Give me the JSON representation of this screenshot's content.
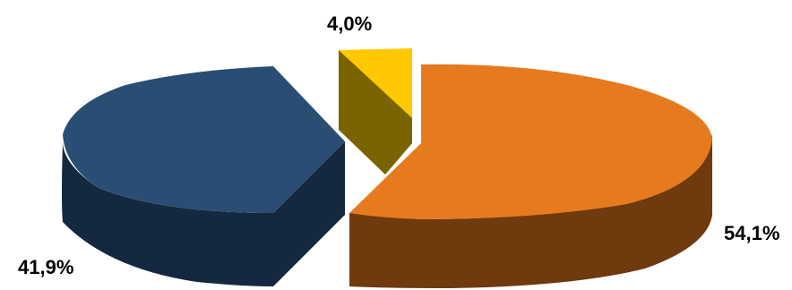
{
  "chart_data": {
    "type": "pie",
    "style": "3d-exploded",
    "title": "",
    "slices": [
      {
        "label": "54,1%",
        "value": 54.1,
        "color": "#E67A1F",
        "side_color": "#6E3A0E"
      },
      {
        "label": "4,0%",
        "value": 4.0,
        "color": "#FFC800",
        "side_color": "#7A6400"
      },
      {
        "label": "41,9%",
        "value": 41.9,
        "color": "#2A4E73",
        "side_color": "#14283F"
      }
    ],
    "legend": "none"
  }
}
